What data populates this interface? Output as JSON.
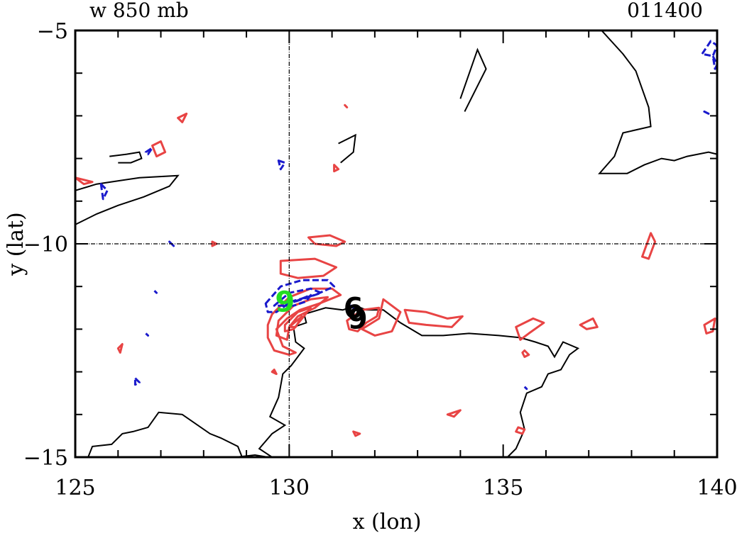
{
  "chart_data": {
    "type": "contour",
    "title_left": "w 850 mb",
    "title_right": "011400",
    "xlabel": "x (lon)",
    "ylabel": "y (lat)",
    "xlim": [
      125,
      140
    ],
    "ylim": [
      -15,
      -5
    ],
    "xticks": [
      125,
      130,
      135,
      140
    ],
    "xtick_labels": [
      "125",
      "130",
      "135",
      "140"
    ],
    "yticks": [
      -5,
      -10,
      -15
    ],
    "ytick_labels": [
      "−5",
      "−10",
      "−15"
    ],
    "reference_lines": {
      "x": 130,
      "y": -10
    },
    "colors": {
      "coast": "#000000",
      "positive": "#e84444",
      "negative": "#1a1acc",
      "marker_green": "#22dd22",
      "marker_black": "#000000"
    },
    "markers": [
      {
        "symbol": "9",
        "x": 129.9,
        "y": -11.35,
        "color": "green"
      },
      {
        "symbol": "6",
        "x": 131.5,
        "y": -11.5,
        "color": "black"
      },
      {
        "symbol": "9",
        "x": 131.6,
        "y": -11.75,
        "color": "black"
      }
    ],
    "coastlines": [
      [
        [
          125,
          -9.55
        ],
        [
          125.5,
          -9.3
        ],
        [
          126,
          -9.1
        ],
        [
          126.6,
          -8.9
        ],
        [
          127.2,
          -8.65
        ],
        [
          127.4,
          -8.4
        ],
        [
          126.5,
          -8.45
        ],
        [
          125.5,
          -8.6
        ],
        [
          125,
          -8.75
        ]
      ],
      [
        [
          125.8,
          -7.95
        ],
        [
          126.2,
          -7.9
        ],
        [
          126.5,
          -7.85
        ],
        [
          126.55,
          -8.0
        ],
        [
          126.3,
          -8.1
        ],
        [
          126,
          -8.1
        ]
      ],
      [
        [
          131.15,
          -7.65
        ],
        [
          131.55,
          -7.45
        ],
        [
          131.5,
          -7.85
        ],
        [
          131.2,
          -8.1
        ]
      ],
      [
        [
          134.0,
          -6.6
        ],
        [
          134.4,
          -5.45
        ],
        [
          134.6,
          -5.9
        ],
        [
          134.4,
          -6.3
        ],
        [
          134.1,
          -6.9
        ]
      ],
      [
        [
          136.5,
          -5.0
        ],
        [
          137.3,
          -5.0
        ],
        [
          137.8,
          -5.55
        ],
        [
          138.1,
          -5.95
        ],
        [
          138.4,
          -6.8
        ],
        [
          138.45,
          -7.25
        ],
        [
          137.8,
          -7.4
        ],
        [
          137.6,
          -7.95
        ],
        [
          137.25,
          -8.35
        ],
        [
          137.9,
          -8.35
        ],
        [
          138.3,
          -8.15
        ],
        [
          138.7,
          -8.0
        ],
        [
          139.0,
          -8.05
        ],
        [
          139.3,
          -7.95
        ],
        [
          139.8,
          -7.85
        ],
        [
          140,
          -7.9
        ]
      ],
      [
        [
          130.35,
          -11.65
        ],
        [
          130.85,
          -11.5
        ],
        [
          131.25,
          -11.55
        ],
        [
          131.55,
          -11.45
        ],
        [
          131.8,
          -11.55
        ],
        [
          132.2,
          -11.55
        ],
        [
          132.6,
          -11.85
        ],
        [
          133.1,
          -12.15
        ],
        [
          133.6,
          -12.15
        ],
        [
          134.2,
          -12.1
        ],
        [
          134.9,
          -12.15
        ],
        [
          135.4,
          -12.2
        ],
        [
          135.75,
          -12.3
        ],
        [
          136.05,
          -12.4
        ],
        [
          136.2,
          -12.65
        ],
        [
          136.4,
          -12.3
        ],
        [
          136.75,
          -12.45
        ],
        [
          136.55,
          -12.6
        ],
        [
          136.35,
          -12.95
        ],
        [
          136.05,
          -13.05
        ],
        [
          135.9,
          -13.35
        ],
        [
          135.55,
          -13.5
        ],
        [
          135.4,
          -13.95
        ],
        [
          135.5,
          -14.35
        ],
        [
          135.3,
          -14.8
        ],
        [
          135.1,
          -15.0
        ]
      ],
      [
        [
          130.35,
          -11.65
        ],
        [
          130.4,
          -11.85
        ],
        [
          130.1,
          -11.95
        ],
        [
          130.15,
          -12.3
        ],
        [
          130.35,
          -12.45
        ],
        [
          130.05,
          -12.85
        ],
        [
          129.85,
          -13.05
        ],
        [
          129.75,
          -13.6
        ],
        [
          129.55,
          -14.05
        ],
        [
          129.9,
          -14.25
        ],
        [
          129.6,
          -14.45
        ],
        [
          129.3,
          -14.8
        ],
        [
          129.6,
          -15.0
        ]
      ],
      [
        [
          125.3,
          -15.0
        ],
        [
          125.4,
          -14.75
        ],
        [
          125.85,
          -14.7
        ],
        [
          126.1,
          -14.45
        ],
        [
          126.35,
          -14.4
        ],
        [
          126.7,
          -14.3
        ],
        [
          126.95,
          -13.95
        ],
        [
          127.5,
          -14.0
        ],
        [
          128.15,
          -14.45
        ],
        [
          128.4,
          -14.55
        ],
        [
          128.8,
          -14.75
        ],
        [
          128.9,
          -15.0
        ]
      ],
      [
        [
          128.75,
          -15.0
        ],
        [
          129.2,
          -14.95
        ],
        [
          129.5,
          -15.0
        ]
      ]
    ],
    "positive_contours": [
      [
        [
          125,
          -8.45
        ],
        [
          125.4,
          -8.55
        ],
        [
          125.2,
          -8.6
        ]
      ],
      [
        [
          126.8,
          -7.7
        ],
        [
          127.0,
          -7.6
        ],
        [
          127.1,
          -7.85
        ],
        [
          126.9,
          -7.95
        ]
      ],
      [
        [
          127.4,
          -7.05
        ],
        [
          127.6,
          -6.95
        ],
        [
          127.5,
          -7.15
        ]
      ],
      [
        [
          128.2,
          -9.95
        ],
        [
          128.3,
          -10.0
        ],
        [
          128.2,
          -10.05
        ]
      ],
      [
        [
          129.8,
          -10.4
        ],
        [
          130.6,
          -10.35
        ],
        [
          131.1,
          -10.55
        ],
        [
          130.8,
          -10.75
        ],
        [
          130.2,
          -10.8
        ],
        [
          129.8,
          -10.7
        ]
      ],
      [
        [
          130.45,
          -9.85
        ],
        [
          130.95,
          -9.8
        ],
        [
          131.3,
          -9.95
        ],
        [
          131.1,
          -10.05
        ],
        [
          130.6,
          -10.0
        ]
      ],
      [
        [
          129.6,
          -11.65
        ],
        [
          130.0,
          -11.25
        ],
        [
          130.5,
          -11.05
        ],
        [
          131.0,
          -11.05
        ],
        [
          131.2,
          -11.2
        ],
        [
          130.7,
          -11.4
        ],
        [
          130.25,
          -11.55
        ],
        [
          129.95,
          -11.75
        ],
        [
          129.7,
          -12.0
        ],
        [
          129.85,
          -12.4
        ],
        [
          130.15,
          -12.55
        ],
        [
          130.0,
          -12.6
        ],
        [
          129.65,
          -12.5
        ],
        [
          129.5,
          -12.2
        ],
        [
          129.5,
          -11.9
        ]
      ],
      [
        [
          129.75,
          -11.8
        ],
        [
          130.1,
          -11.45
        ],
        [
          130.5,
          -11.3
        ],
        [
          130.9,
          -11.25
        ],
        [
          130.6,
          -11.5
        ],
        [
          130.2,
          -11.7
        ],
        [
          130.0,
          -11.95
        ],
        [
          129.95,
          -12.25
        ],
        [
          129.7,
          -12.15
        ]
      ],
      [
        [
          129.9,
          -11.9
        ],
        [
          130.2,
          -11.6
        ],
        [
          130.5,
          -11.5
        ],
        [
          130.3,
          -11.75
        ],
        [
          130.1,
          -12.0
        ],
        [
          129.9,
          -12.05
        ]
      ],
      [
        [
          130.0,
          -11.95
        ],
        [
          130.3,
          -11.7
        ],
        [
          130.15,
          -11.95
        ]
      ],
      [
        [
          131.35,
          -11.8
        ],
        [
          131.7,
          -11.55
        ],
        [
          132.1,
          -11.5
        ],
        [
          132.05,
          -11.7
        ],
        [
          131.8,
          -11.85
        ],
        [
          131.6,
          -12.05
        ],
        [
          131.4,
          -12.0
        ]
      ],
      [
        [
          132.2,
          -11.3
        ],
        [
          132.6,
          -11.6
        ],
        [
          132.4,
          -12.05
        ],
        [
          132.0,
          -12.15
        ],
        [
          131.7,
          -12.0
        ],
        [
          132.1,
          -11.75
        ]
      ],
      [
        [
          132.7,
          -11.55
        ],
        [
          133.2,
          -11.6
        ],
        [
          133.7,
          -11.75
        ],
        [
          134.05,
          -11.7
        ],
        [
          133.8,
          -11.95
        ],
        [
          133.2,
          -11.9
        ],
        [
          132.8,
          -11.85
        ]
      ],
      [
        [
          135.3,
          -11.95
        ],
        [
          135.7,
          -11.75
        ],
        [
          135.95,
          -11.85
        ],
        [
          135.6,
          -12.1
        ],
        [
          135.4,
          -12.25
        ]
      ],
      [
        [
          135.5,
          -12.5
        ],
        [
          135.6,
          -12.6
        ],
        [
          135.5,
          -12.65
        ],
        [
          135.45,
          -12.55
        ]
      ],
      [
        [
          136.8,
          -11.9
        ],
        [
          137.1,
          -11.75
        ],
        [
          137.2,
          -11.95
        ],
        [
          136.95,
          -12.0
        ]
      ],
      [
        [
          138.25,
          -10.3
        ],
        [
          138.45,
          -9.75
        ],
        [
          138.55,
          -9.95
        ],
        [
          138.4,
          -10.35
        ]
      ],
      [
        [
          139.7,
          -11.9
        ],
        [
          139.95,
          -11.75
        ],
        [
          139.9,
          -12.05
        ],
        [
          139.75,
          -12.1
        ]
      ],
      [
        [
          126.0,
          -12.45
        ],
        [
          126.1,
          -12.35
        ],
        [
          126.05,
          -12.55
        ]
      ],
      [
        [
          129.65,
          -12.95
        ],
        [
          129.7,
          -13.05
        ],
        [
          129.6,
          -13.0
        ]
      ],
      [
        [
          131.5,
          -14.4
        ],
        [
          131.65,
          -14.45
        ],
        [
          131.55,
          -14.5
        ]
      ],
      [
        [
          133.7,
          -14.0
        ],
        [
          134.0,
          -13.9
        ],
        [
          133.85,
          -14.05
        ]
      ],
      [
        [
          135.35,
          -14.3
        ],
        [
          135.5,
          -14.35
        ],
        [
          135.45,
          -14.45
        ],
        [
          135.3,
          -14.4
        ]
      ],
      [
        [
          131.05,
          -8.15
        ],
        [
          131.15,
          -8.25
        ],
        [
          131.05,
          -8.3
        ]
      ],
      [
        [
          131.3,
          -6.75
        ],
        [
          131.35,
          -6.8
        ]
      ]
    ],
    "negative_contours": [
      [
        [
          129.45,
          -11.4
        ],
        [
          129.8,
          -11.0
        ],
        [
          130.3,
          -10.85
        ],
        [
          130.9,
          -10.85
        ],
        [
          131.05,
          -11.0
        ],
        [
          130.6,
          -11.2
        ],
        [
          130.05,
          -11.35
        ],
        [
          129.7,
          -11.6
        ],
        [
          129.5,
          -11.6
        ]
      ],
      [
        [
          129.65,
          -11.45
        ],
        [
          130.0,
          -11.15
        ],
        [
          130.5,
          -11.05
        ],
        [
          130.75,
          -11.15
        ],
        [
          130.3,
          -11.3
        ],
        [
          129.85,
          -11.45
        ]
      ],
      [
        [
          129.9,
          -11.45
        ],
        [
          130.5,
          -11.2
        ],
        [
          130.4,
          -11.35
        ],
        [
          130.1,
          -11.45
        ]
      ],
      [
        [
          129.75,
          -8.05
        ],
        [
          129.9,
          -8.1
        ],
        [
          129.8,
          -8.25
        ]
      ],
      [
        [
          126.65,
          -7.85
        ],
        [
          126.8,
          -7.75
        ],
        [
          126.7,
          -7.9
        ]
      ],
      [
        [
          125.6,
          -8.6
        ],
        [
          125.75,
          -8.75
        ],
        [
          125.65,
          -8.95
        ]
      ],
      [
        [
          127.2,
          -9.95
        ],
        [
          127.3,
          -10.05
        ]
      ],
      [
        [
          126.85,
          -11.1
        ],
        [
          126.9,
          -11.15
        ]
      ],
      [
        [
          126.65,
          -12.1
        ],
        [
          126.7,
          -12.15
        ]
      ],
      [
        [
          126.4,
          -13.15
        ],
        [
          126.5,
          -13.25
        ],
        [
          126.4,
          -13.3
        ]
      ],
      [
        [
          139.65,
          -5.55
        ],
        [
          139.85,
          -5.25
        ],
        [
          140,
          -5.35
        ],
        [
          139.9,
          -5.6
        ]
      ],
      [
        [
          139.9,
          -5.6
        ],
        [
          140,
          -5.8
        ],
        [
          139.95,
          -5.9
        ]
      ],
      [
        [
          139.7,
          -6.9
        ],
        [
          139.8,
          -6.95
        ]
      ],
      [
        [
          135.5,
          -13.35
        ],
        [
          135.55,
          -13.4
        ]
      ],
      [
        [
          131.45,
          -11.45
        ],
        [
          131.55,
          -11.55
        ]
      ]
    ]
  }
}
